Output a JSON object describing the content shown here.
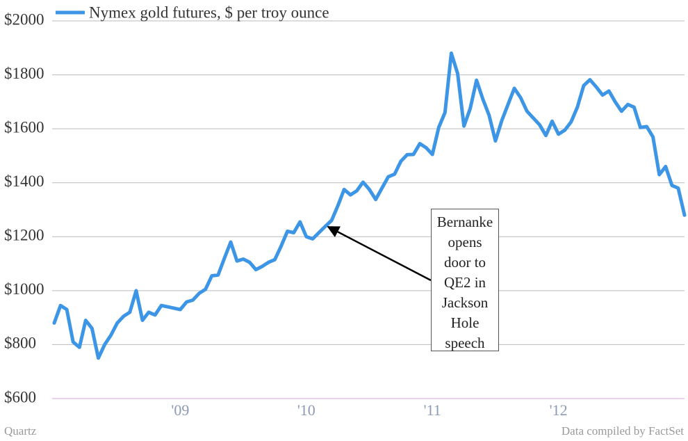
{
  "chart_data": {
    "type": "line",
    "legend": "top-left",
    "grid": true,
    "x": [
      2008,
      2008.05,
      2008.1,
      2008.15,
      2008.2,
      2008.25,
      2008.3,
      2008.35,
      2008.4,
      2008.45,
      2008.5,
      2008.55,
      2008.6,
      2008.65,
      2008.7,
      2008.75,
      2008.8,
      2008.85,
      2008.9,
      2008.95,
      2009,
      2009.05,
      2009.1,
      2009.15,
      2009.2,
      2009.25,
      2009.3,
      2009.35,
      2009.4,
      2009.45,
      2009.5,
      2009.55,
      2009.6,
      2009.65,
      2009.7,
      2009.75,
      2009.8,
      2009.85,
      2009.9,
      2009.95,
      2010,
      2010.05,
      2010.1,
      2010.15,
      2010.2,
      2010.25,
      2010.3,
      2010.35,
      2010.4,
      2010.45,
      2010.5,
      2010.55,
      2010.6,
      2010.65,
      2010.7,
      2010.75,
      2010.8,
      2010.85,
      2010.9,
      2010.95,
      2011,
      2011.05,
      2011.1,
      2011.15,
      2011.2,
      2011.25,
      2011.3,
      2011.35,
      2011.4,
      2011.45,
      2011.5,
      2011.55,
      2011.6,
      2011.65,
      2011.7,
      2011.75,
      2011.8,
      2011.85,
      2011.9,
      2011.95,
      2012,
      2012.05,
      2012.1,
      2012.15,
      2012.2,
      2012.25,
      2012.3,
      2012.35,
      2012.4,
      2012.45,
      2012.5,
      2012.55,
      2012.6,
      2012.65,
      2012.7,
      2012.75,
      2012.8,
      2012.85,
      2012.9,
      2012.95,
      2013
    ],
    "series": [
      {
        "name": "Nymex gold futures, $ per troy ounce",
        "color": "#3d95e6",
        "values": [
          880,
          945,
          930,
          810,
          790,
          890,
          860,
          750,
          800,
          835,
          880,
          905,
          920,
          1000,
          890,
          920,
          910,
          945,
          940,
          935,
          930,
          958,
          965,
          990,
          1005,
          1055,
          1058,
          1120,
          1180,
          1110,
          1117,
          1105,
          1078,
          1090,
          1105,
          1115,
          1165,
          1220,
          1215,
          1255,
          1200,
          1192,
          1215,
          1238,
          1260,
          1315,
          1375,
          1355,
          1370,
          1402,
          1375,
          1338,
          1380,
          1422,
          1432,
          1480,
          1504,
          1505,
          1545,
          1530,
          1505,
          1605,
          1660,
          1880,
          1805,
          1610,
          1675,
          1780,
          1710,
          1650,
          1555,
          1630,
          1690,
          1750,
          1715,
          1665,
          1640,
          1615,
          1575,
          1628,
          1580,
          1595,
          1625,
          1680,
          1760,
          1782,
          1755,
          1725,
          1740,
          1700,
          1665,
          1690,
          1680,
          1605,
          1608,
          1570,
          1430,
          1460,
          1390,
          1380,
          1280
        ]
      }
    ],
    "xlim": [
      2008,
      2013
    ],
    "xticks": [
      {
        "value": 2009,
        "label": "'09"
      },
      {
        "value": 2010,
        "label": "'10"
      },
      {
        "value": 2011,
        "label": "'11"
      },
      {
        "value": 2012,
        "label": "'12"
      }
    ],
    "ylim": [
      600,
      2000
    ],
    "yticks": [
      {
        "value": 600,
        "label": "$600"
      },
      {
        "value": 800,
        "label": "$800"
      },
      {
        "value": 1000,
        "label": "$1000"
      },
      {
        "value": 1200,
        "label": "$1200"
      },
      {
        "value": 1400,
        "label": "$1400"
      },
      {
        "value": 1600,
        "label": "$1600"
      },
      {
        "value": 1800,
        "label": "$1800"
      },
      {
        "value": 2000,
        "label": "$2000"
      }
    ],
    "annotation": "Bernanke opens door to QE2 in Jackson Hole speech",
    "source_left": "Quartz",
    "source_right": "Data compiled by FactSet"
  }
}
